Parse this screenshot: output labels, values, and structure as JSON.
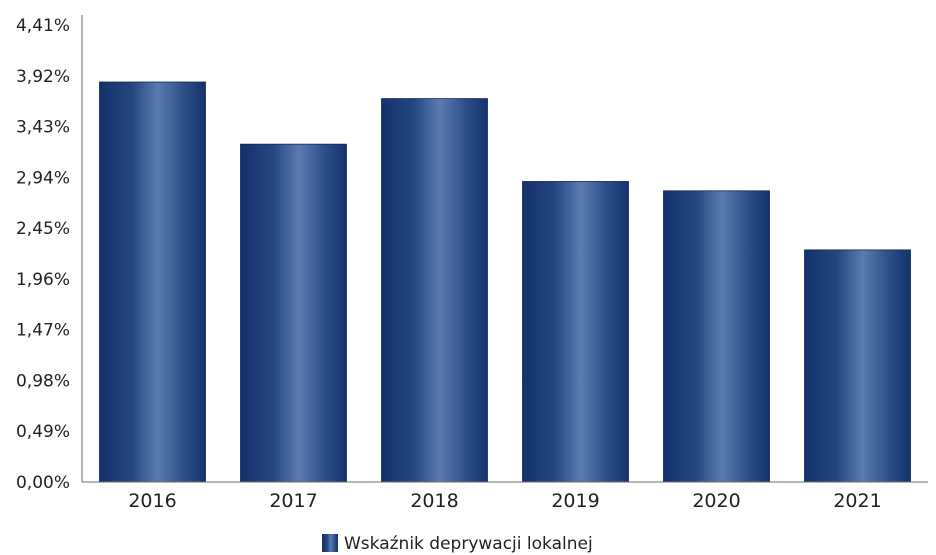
{
  "chart_data": {
    "type": "bar",
    "categories": [
      "2016",
      "2017",
      "2018",
      "2019",
      "2020",
      "2021"
    ],
    "series": [
      {
        "name": "Wskaźnik deprywacji lokalnej",
        "values": [
          3.86,
          3.26,
          3.7,
          2.9,
          2.81,
          2.24
        ]
      }
    ],
    "yticks": [
      "0,00%",
      "0,49%",
      "0,98%",
      "1,47%",
      "1,96%",
      "2,45%",
      "2,94%",
      "3,43%",
      "3,92%",
      "4,41%"
    ],
    "ylim": [
      0,
      4.41
    ],
    "grid": false,
    "legend_position": "bottom",
    "colors": {
      "bar_dark": "#14316a",
      "bar_light": "#5b7bb0",
      "axis": "#6d6d6d"
    }
  }
}
